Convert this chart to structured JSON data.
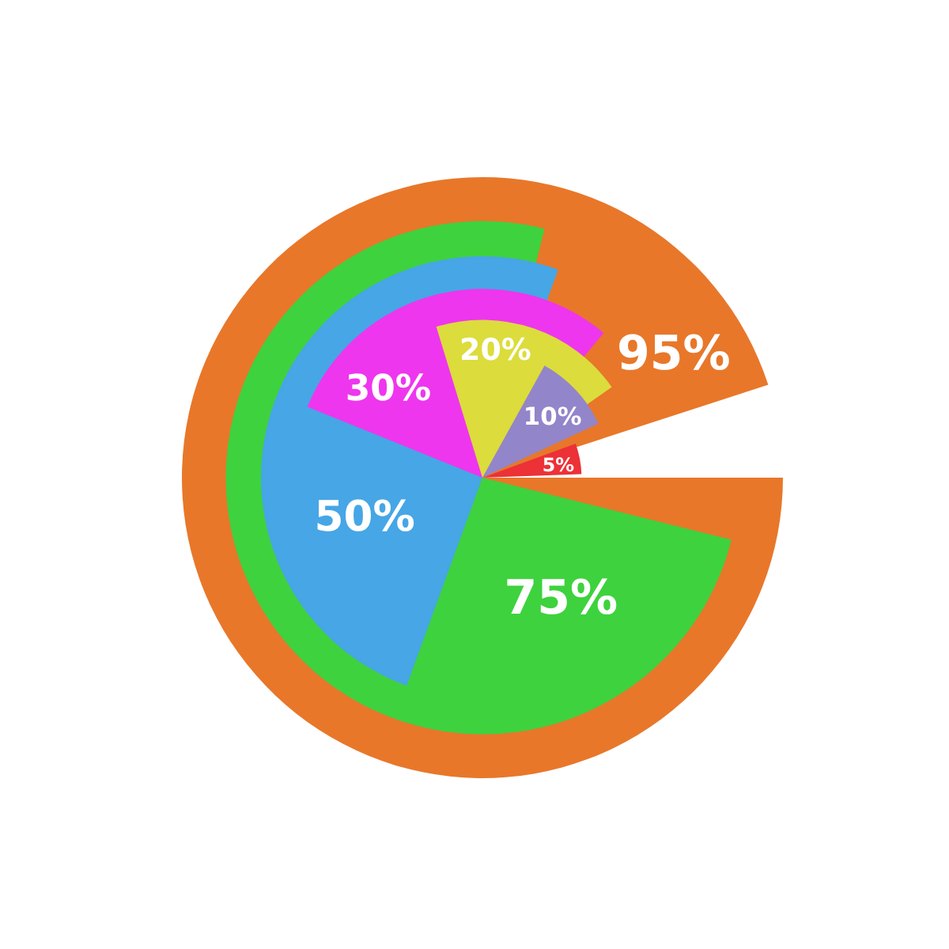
{
  "chart_data": {
    "type": "pie",
    "categories": [
      null
    ],
    "series": [
      {
        "color": "#e8772a",
        "values": [
          95
        ],
        "value_labels": [
          "95%"
        ]
      },
      {
        "color": "#3ed23e",
        "values": [
          75
        ],
        "value_labels": [
          "75%"
        ]
      },
      {
        "color": "#9385c9",
        "values": [
          10
        ],
        "value_labels": [
          "10%"
        ]
      },
      {
        "color": "#46a6e6",
        "values": [
          50
        ],
        "value_labels": [
          "50%"
        ]
      },
      {
        "color": "#ee36ee",
        "values": [
          30
        ],
        "value_labels": [
          "30%"
        ]
      },
      {
        "color": "#dcdc3c",
        "values": [
          20
        ],
        "value_labels": [
          "20%"
        ]
      },
      {
        "color": "#ec3137",
        "values": [
          5
        ],
        "value_labels": [
          "5%"
        ]
      }
    ]
  }
}
